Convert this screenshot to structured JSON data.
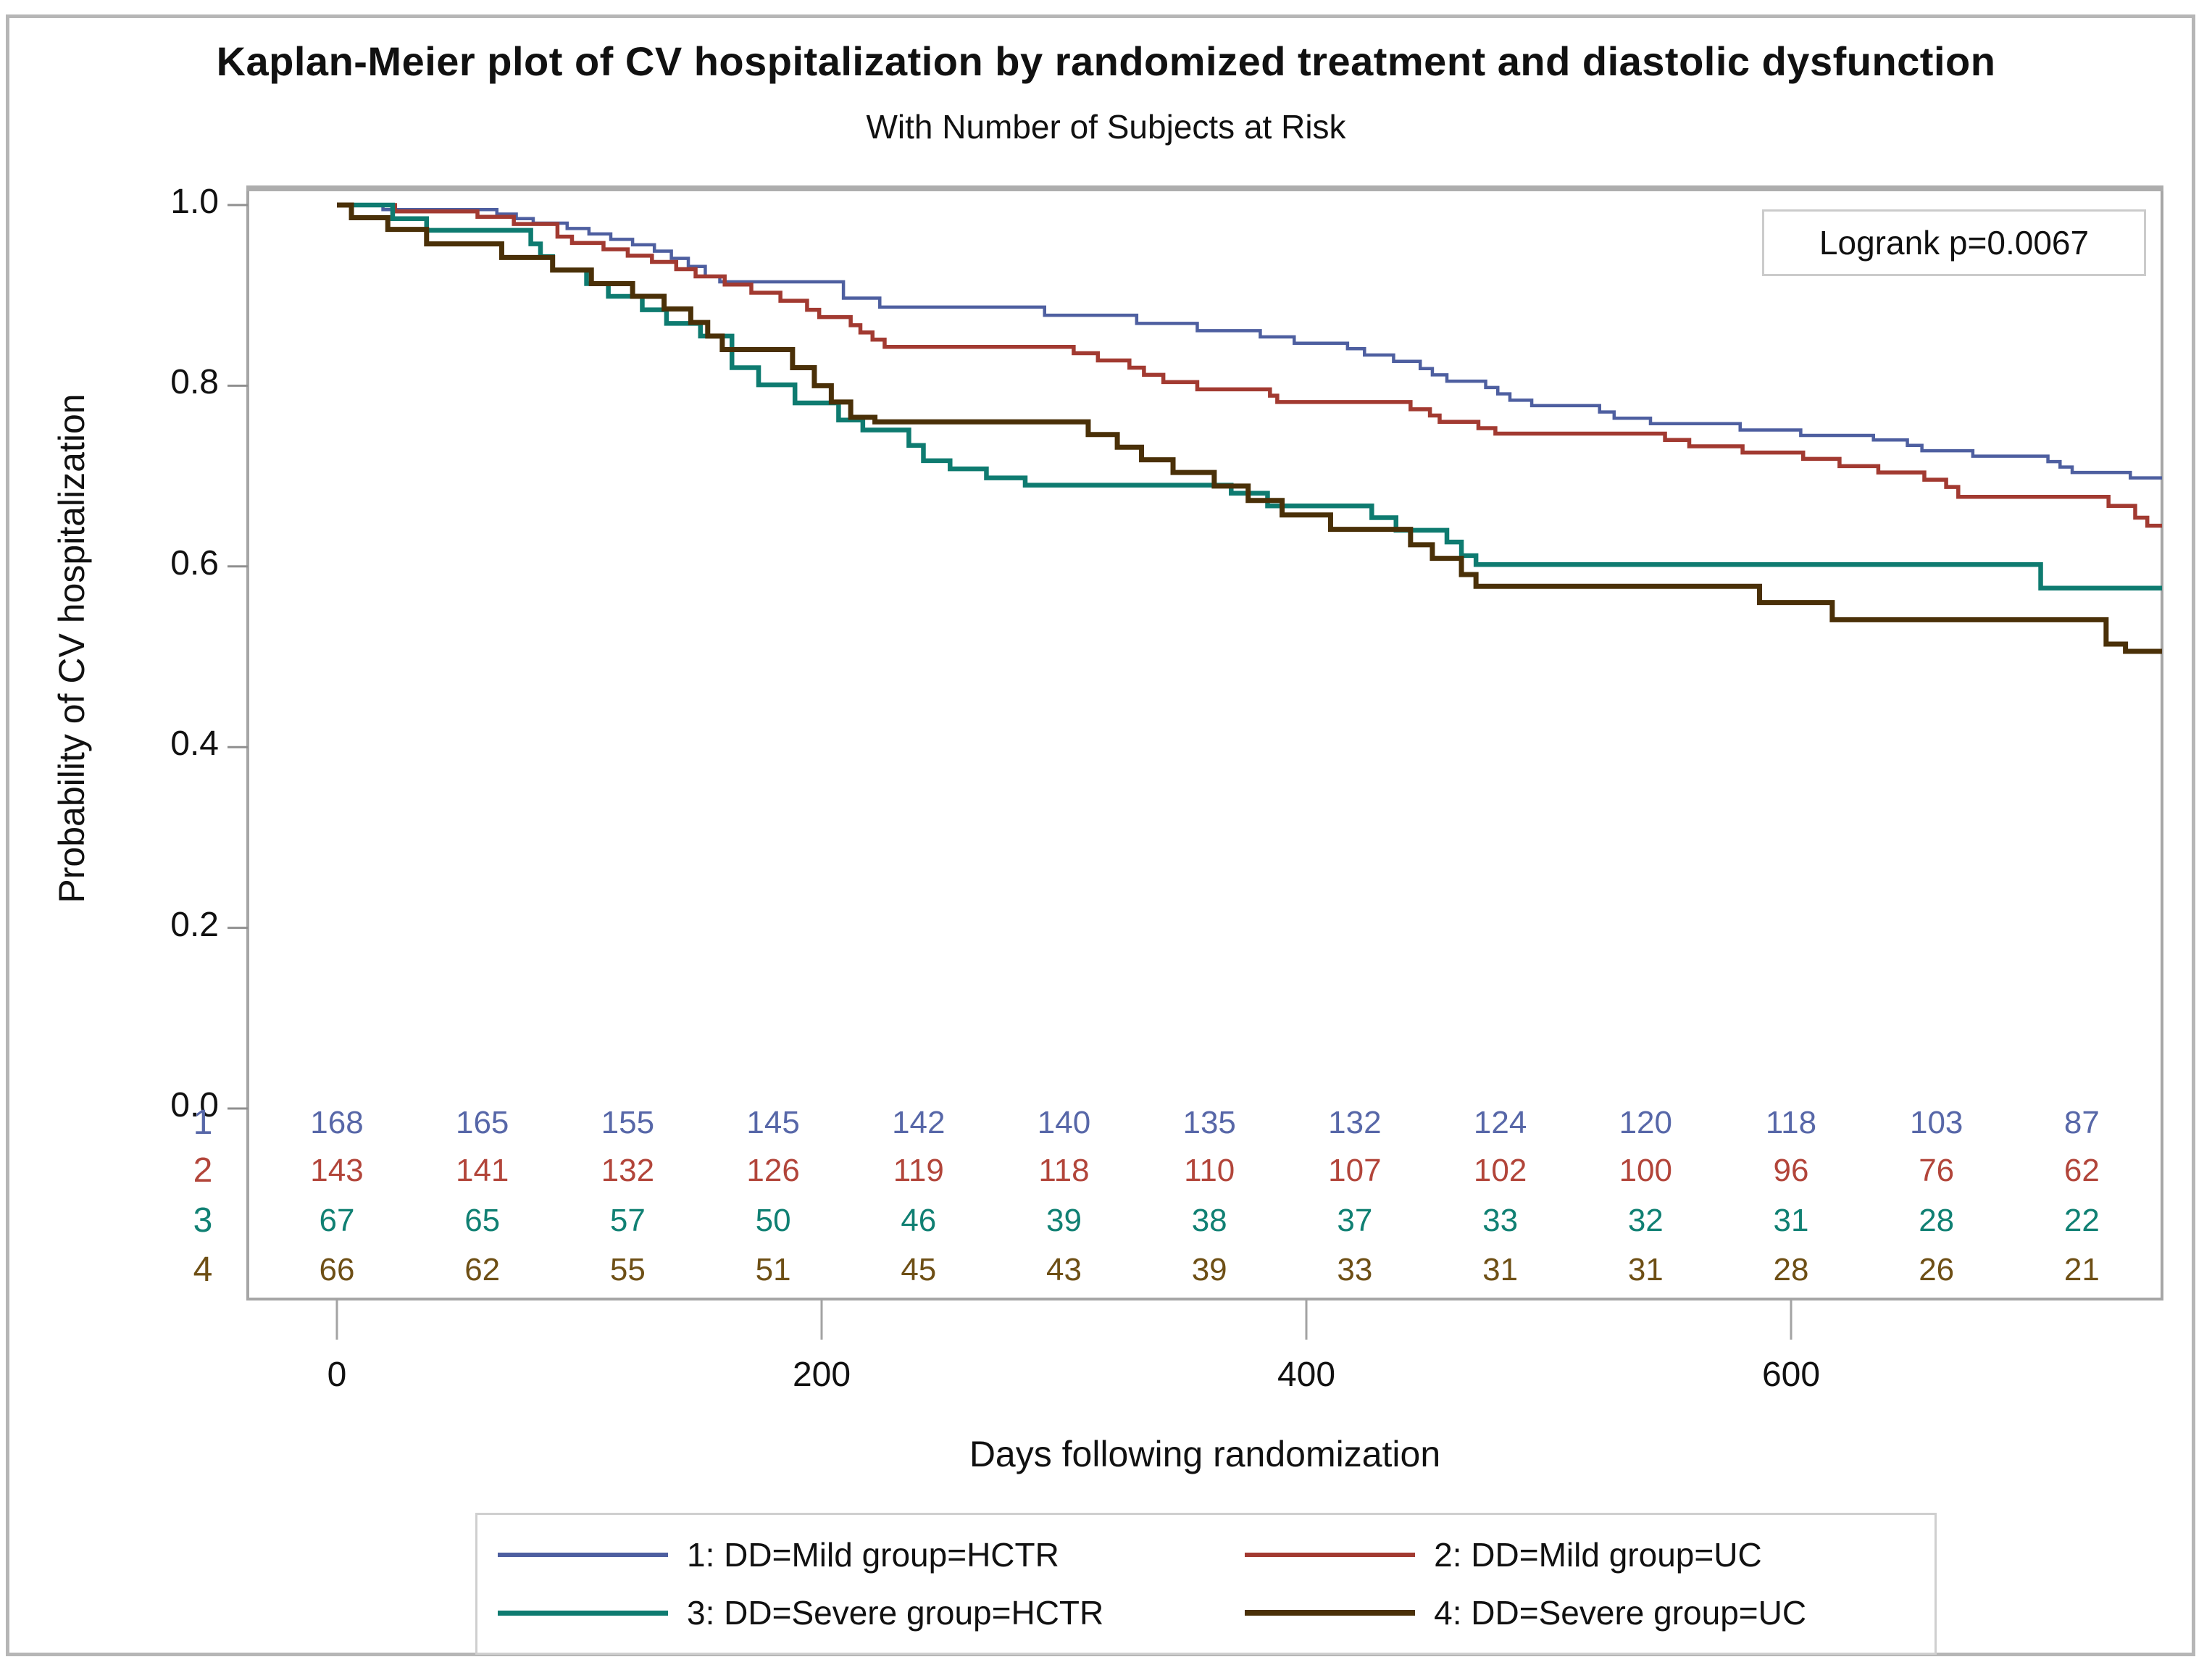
{
  "title": "Kaplan-Meier plot of CV hospitalization by randomized treatment and diastolic dysfunction",
  "subtitle": "With Number of Subjects at Risk",
  "annotation": "Logrank p=0.0067",
  "y_axis": {
    "label": "Probability of CV hospitalization",
    "ticks": [
      "1.0",
      "0.8",
      "0.6",
      "0.4",
      "0.2",
      "0.0"
    ],
    "tick_values": [
      1.0,
      0.8,
      0.6,
      0.4,
      0.2,
      0.0
    ]
  },
  "x_axis": {
    "label": "Days following randomization",
    "ticks": [
      "0",
      "200",
      "400",
      "600"
    ],
    "tick_values": [
      0,
      200,
      400,
      600
    ]
  },
  "legend": {
    "items": [
      {
        "label": "1: DD=Mild group=HCTR",
        "color": "#4e5fa0",
        "line_width": 6
      },
      {
        "label": "2: DD=Mild group=UC",
        "color": "#a23a31",
        "line_width": 6
      },
      {
        "label": "3: DD=Severe group=HCTR",
        "color": "#0e7b70",
        "line_width": 7
      },
      {
        "label": "4: DD=Severe group=UC",
        "color": "#4a3008",
        "line_width": 8
      }
    ]
  },
  "at_risk": {
    "days": [
      0,
      60,
      120,
      180,
      240,
      300,
      360,
      420,
      480,
      540,
      600,
      660,
      720
    ],
    "rows": [
      {
        "label": "1",
        "color": "#5767a8",
        "values": [
          168,
          165,
          155,
          145,
          142,
          140,
          135,
          132,
          124,
          120,
          118,
          103,
          87
        ]
      },
      {
        "label": "2",
        "color": "#b2453a",
        "values": [
          143,
          141,
          132,
          126,
          119,
          118,
          110,
          107,
          102,
          100,
          96,
          76,
          62
        ]
      },
      {
        "label": "3",
        "color": "#108073",
        "values": [
          67,
          65,
          57,
          50,
          46,
          39,
          38,
          37,
          33,
          32,
          31,
          28,
          22
        ]
      },
      {
        "label": "4",
        "color": "#6e4f15",
        "values": [
          66,
          62,
          55,
          51,
          45,
          43,
          39,
          33,
          31,
          31,
          28,
          26,
          21
        ]
      }
    ]
  },
  "chart_data": {
    "type": "line",
    "subtype": "kaplan-meier-step",
    "title": "Kaplan-Meier plot of CV hospitalization by randomized treatment and diastolic dysfunction",
    "xlabel": "Days following randomization",
    "ylabel": "Probability of CV hospitalization",
    "xlim": [
      0,
      753
    ],
    "ylim": [
      0.0,
      1.0
    ],
    "grid": false,
    "legend_position": "bottom",
    "series": [
      {
        "name": "1: DD=Mild group=HCTR",
        "color": "#4e5fa0",
        "stroke_width": 4.5,
        "points": [
          [
            0,
            1.0
          ],
          [
            19,
            0.995
          ],
          [
            66,
            0.99
          ],
          [
            74,
            0.985
          ],
          [
            81,
            0.98
          ],
          [
            95,
            0.974
          ],
          [
            104,
            0.968
          ],
          [
            113,
            0.962
          ],
          [
            122,
            0.956
          ],
          [
            131,
            0.949
          ],
          [
            138,
            0.941
          ],
          [
            145,
            0.932
          ],
          [
            152,
            0.921
          ],
          [
            158,
            0.915
          ],
          [
            209,
            0.897
          ],
          [
            224,
            0.887
          ],
          [
            292,
            0.878
          ],
          [
            330,
            0.869
          ],
          [
            355,
            0.861
          ],
          [
            381,
            0.854
          ],
          [
            395,
            0.847
          ],
          [
            417,
            0.841
          ],
          [
            424,
            0.834
          ],
          [
            436,
            0.827
          ],
          [
            447,
            0.819
          ],
          [
            452,
            0.812
          ],
          [
            458,
            0.805
          ],
          [
            474,
            0.798
          ],
          [
            479,
            0.791
          ],
          [
            484,
            0.784
          ],
          [
            493,
            0.778
          ],
          [
            521,
            0.771
          ],
          [
            527,
            0.764
          ],
          [
            542,
            0.758
          ],
          [
            579,
            0.751
          ],
          [
            604,
            0.745
          ],
          [
            634,
            0.74
          ],
          [
            648,
            0.734
          ],
          [
            654,
            0.728
          ],
          [
            675,
            0.722
          ],
          [
            706,
            0.716
          ],
          [
            711,
            0.71
          ],
          [
            716,
            0.704
          ],
          [
            740,
            0.698
          ]
        ]
      },
      {
        "name": "2: DD=Mild group=UC",
        "color": "#a23a31",
        "stroke_width": 5.5,
        "points": [
          [
            0,
            1.0
          ],
          [
            24,
            0.993
          ],
          [
            58,
            0.987
          ],
          [
            73,
            0.979
          ],
          [
            91,
            0.965
          ],
          [
            97,
            0.958
          ],
          [
            110,
            0.951
          ],
          [
            120,
            0.944
          ],
          [
            130,
            0.937
          ],
          [
            140,
            0.929
          ],
          [
            148,
            0.921
          ],
          [
            160,
            0.912
          ],
          [
            171,
            0.903
          ],
          [
            183,
            0.894
          ],
          [
            194,
            0.884
          ],
          [
            199,
            0.876
          ],
          [
            212,
            0.867
          ],
          [
            216,
            0.859
          ],
          [
            221,
            0.851
          ],
          [
            226,
            0.843
          ],
          [
            304,
            0.836
          ],
          [
            314,
            0.828
          ],
          [
            327,
            0.82
          ],
          [
            333,
            0.812
          ],
          [
            341,
            0.804
          ],
          [
            355,
            0.796
          ],
          [
            385,
            0.789
          ],
          [
            388,
            0.782
          ],
          [
            443,
            0.774
          ],
          [
            451,
            0.767
          ],
          [
            455,
            0.76
          ],
          [
            471,
            0.753
          ],
          [
            478,
            0.747
          ],
          [
            548,
            0.74
          ],
          [
            558,
            0.733
          ],
          [
            580,
            0.726
          ],
          [
            605,
            0.719
          ],
          [
            620,
            0.711
          ],
          [
            636,
            0.704
          ],
          [
            655,
            0.696
          ],
          [
            664,
            0.688
          ],
          [
            669,
            0.677
          ],
          [
            731,
            0.667
          ],
          [
            742,
            0.654
          ],
          [
            747,
            0.645
          ]
        ]
      },
      {
        "name": "3: DD=Severe group=HCTR",
        "color": "#0e7b70",
        "stroke_width": 6.5,
        "points": [
          [
            0,
            1.0
          ],
          [
            23,
            0.985
          ],
          [
            37,
            0.972
          ],
          [
            80,
            0.957
          ],
          [
            84,
            0.943
          ],
          [
            89,
            0.928
          ],
          [
            103,
            0.913
          ],
          [
            112,
            0.899
          ],
          [
            126,
            0.884
          ],
          [
            136,
            0.869
          ],
          [
            150,
            0.855
          ],
          [
            163,
            0.82
          ],
          [
            174,
            0.801
          ],
          [
            189,
            0.781
          ],
          [
            207,
            0.762
          ],
          [
            217,
            0.751
          ],
          [
            236,
            0.734
          ],
          [
            242,
            0.717
          ],
          [
            253,
            0.708
          ],
          [
            268,
            0.698
          ],
          [
            284,
            0.69
          ],
          [
            369,
            0.681
          ],
          [
            384,
            0.667
          ],
          [
            427,
            0.654
          ],
          [
            437,
            0.64
          ],
          [
            458,
            0.627
          ],
          [
            464,
            0.612
          ],
          [
            470,
            0.602
          ],
          [
            703,
            0.576
          ]
        ]
      },
      {
        "name": "4: DD=Severe group=UC",
        "color": "#4a3008",
        "stroke_width": 7,
        "points": [
          [
            0,
            1.0
          ],
          [
            6,
            0.986
          ],
          [
            21,
            0.973
          ],
          [
            37,
            0.957
          ],
          [
            68,
            0.942
          ],
          [
            89,
            0.928
          ],
          [
            105,
            0.913
          ],
          [
            122,
            0.899
          ],
          [
            135,
            0.885
          ],
          [
            146,
            0.87
          ],
          [
            153,
            0.855
          ],
          [
            159,
            0.84
          ],
          [
            188,
            0.82
          ],
          [
            197,
            0.8
          ],
          [
            204,
            0.782
          ],
          [
            212,
            0.765
          ],
          [
            222,
            0.76
          ],
          [
            310,
            0.746
          ],
          [
            322,
            0.732
          ],
          [
            332,
            0.718
          ],
          [
            345,
            0.704
          ],
          [
            362,
            0.689
          ],
          [
            376,
            0.673
          ],
          [
            390,
            0.657
          ],
          [
            410,
            0.641
          ],
          [
            443,
            0.624
          ],
          [
            452,
            0.609
          ],
          [
            464,
            0.591
          ],
          [
            470,
            0.578
          ],
          [
            587,
            0.56
          ],
          [
            617,
            0.541
          ],
          [
            730,
            0.514
          ],
          [
            738,
            0.506
          ]
        ]
      }
    ]
  }
}
